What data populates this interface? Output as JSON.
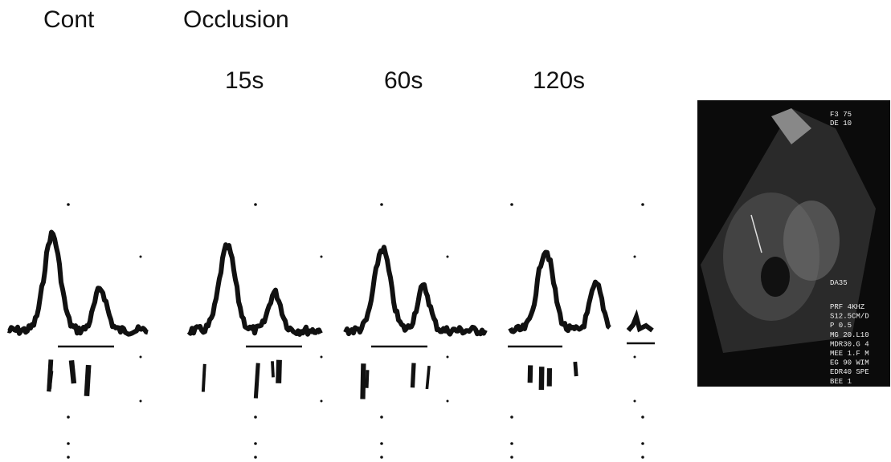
{
  "labels": {
    "control": "Cont",
    "occlusion": "Occlusion",
    "times": [
      "15s",
      "60s",
      "120s"
    ]
  },
  "echo": {
    "header": [
      "F3 75",
      "DE 10"
    ],
    "marker": "DA35",
    "settings": [
      "PRF 4KHZ",
      "S12.5CM/D",
      "P 0.5",
      "MG 20.L10",
      "MDR30.G 4",
      "MEE 1.F M",
      "EG 90 WIM",
      "EDR40 SPE",
      "BEE 1"
    ]
  }
}
